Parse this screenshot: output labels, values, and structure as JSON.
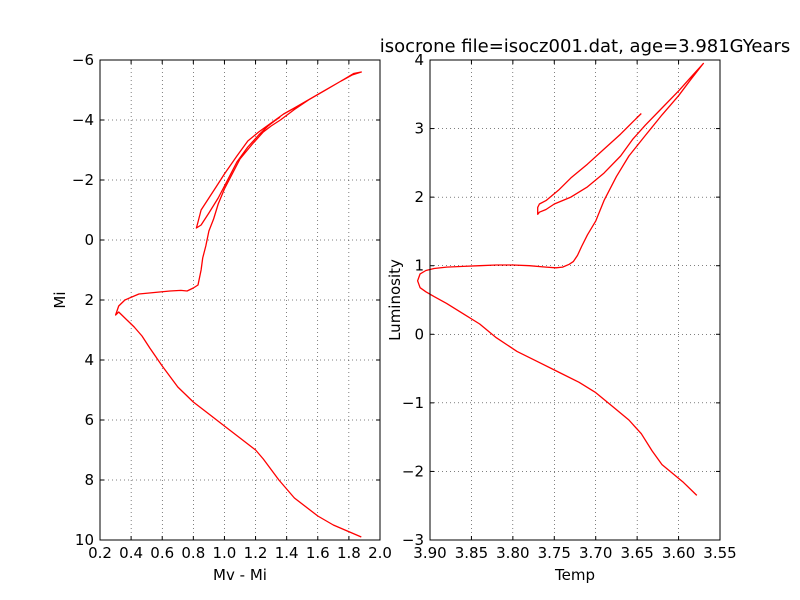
{
  "chart_data": [
    {
      "type": "line",
      "title": "",
      "xlabel": "Mv - Mi",
      "ylabel": "Mi",
      "xlim": [
        0.2,
        2.0
      ],
      "ylim": [
        10,
        -6
      ],
      "y_inverted": true,
      "grid": true,
      "xticks": [
        "0.2",
        "0.4",
        "0.6",
        "0.8",
        "1.0",
        "1.2",
        "1.4",
        "1.6",
        "1.8",
        "2.0"
      ],
      "xtick_values": [
        0.2,
        0.4,
        0.6,
        0.8,
        1.0,
        1.2,
        1.4,
        1.6,
        1.8,
        2.0
      ],
      "yticks": [
        "−6",
        "−4",
        "−2",
        "0",
        "2",
        "4",
        "6",
        "8",
        "10"
      ],
      "ytick_values": [
        -6,
        -4,
        -2,
        0,
        2,
        4,
        6,
        8,
        10
      ],
      "color": "#ff0000",
      "series": [
        {
          "x": [
            1.88,
            1.7,
            1.6,
            1.45,
            1.35,
            1.25,
            1.2,
            1.1,
            1.0,
            0.9,
            0.8,
            0.7,
            0.6,
            0.52,
            0.47,
            0.42,
            0.38,
            0.34,
            0.32,
            0.3,
            0.32,
            0.36,
            0.45,
            0.55,
            0.65,
            0.72,
            0.76,
            0.8,
            0.83,
            0.85,
            0.86,
            0.88,
            0.9,
            0.93,
            0.96,
            1.0,
            1.05,
            1.1,
            1.18,
            1.25,
            1.3,
            1.36,
            1.45,
            1.55,
            1.65,
            1.75,
            1.82,
            1.88,
            1.88,
            1.83,
            1.75,
            1.65,
            1.55,
            1.45,
            1.38,
            1.3,
            1.22,
            1.15,
            1.08,
            1.0,
            0.95,
            0.9,
            0.85,
            0.83,
            0.82,
            0.85,
            0.9,
            0.96,
            1.02,
            1.08,
            1.15,
            1.22,
            1.28,
            1.33,
            1.36
          ],
          "y": [
            9.9,
            9.5,
            9.2,
            8.6,
            8.0,
            7.3,
            7.0,
            6.6,
            6.2,
            5.8,
            5.4,
            4.9,
            4.2,
            3.6,
            3.2,
            2.9,
            2.7,
            2.5,
            2.4,
            2.5,
            2.2,
            2.0,
            1.8,
            1.75,
            1.7,
            1.68,
            1.7,
            1.6,
            1.5,
            1.0,
            0.6,
            0.2,
            -0.3,
            -0.7,
            -1.2,
            -1.7,
            -2.2,
            -2.7,
            -3.2,
            -3.6,
            -3.8,
            -4.0,
            -4.35,
            -4.7,
            -5.0,
            -5.3,
            -5.5,
            -5.6,
            -5.6,
            -5.55,
            -5.3,
            -5.0,
            -4.7,
            -4.4,
            -4.2,
            -3.9,
            -3.6,
            -3.3,
            -2.8,
            -2.2,
            -1.8,
            -1.4,
            -1.0,
            -0.6,
            -0.4,
            -0.5,
            -0.9,
            -1.4,
            -2.0,
            -2.6,
            -3.1,
            -3.5,
            -3.8,
            -4.0,
            -4.1
          ]
        }
      ]
    },
    {
      "type": "line",
      "title": "isocrone file=isocz001.dat, age=3.981GYears",
      "xlabel": "Temp",
      "ylabel": "Luminosity",
      "xlim": [
        3.9,
        3.55
      ],
      "ylim": [
        -3,
        4
      ],
      "x_inverted": true,
      "grid": true,
      "xticks": [
        "3.90",
        "3.85",
        "3.80",
        "3.75",
        "3.70",
        "3.65",
        "3.60",
        "3.55"
      ],
      "xtick_values": [
        3.9,
        3.85,
        3.8,
        3.75,
        3.7,
        3.65,
        3.6,
        3.55
      ],
      "yticks": [
        "−3",
        "−2",
        "−1",
        "0",
        "1",
        "2",
        "3",
        "4"
      ],
      "ytick_values": [
        -3,
        -2,
        -1,
        0,
        1,
        2,
        3,
        4
      ],
      "color": "#ff0000",
      "series": [
        {
          "x": [
            3.578,
            3.595,
            3.62,
            3.632,
            3.645,
            3.66,
            3.68,
            3.7,
            3.72,
            3.745,
            3.77,
            3.795,
            3.82,
            3.84,
            3.86,
            3.88,
            3.895,
            3.905,
            3.912,
            3.915,
            3.912,
            3.905,
            3.895,
            3.88,
            3.86,
            3.84,
            3.82,
            3.8,
            3.78,
            3.76,
            3.748,
            3.74,
            3.732,
            3.727,
            3.722,
            3.717,
            3.71,
            3.7,
            3.69,
            3.675,
            3.66,
            3.64,
            3.62,
            3.6,
            3.585,
            3.57,
            3.57,
            3.585,
            3.6,
            3.62,
            3.64,
            3.655,
            3.67,
            3.69,
            3.71,
            3.73,
            3.75,
            3.76,
            3.768,
            3.77,
            3.77,
            3.768,
            3.76,
            3.745,
            3.73,
            3.71,
            3.69,
            3.67,
            3.655,
            3.645
          ],
          "y": [
            -2.35,
            -2.15,
            -1.9,
            -1.7,
            -1.45,
            -1.25,
            -1.05,
            -0.85,
            -0.7,
            -0.55,
            -0.4,
            -0.25,
            -0.05,
            0.15,
            0.3,
            0.45,
            0.55,
            0.62,
            0.68,
            0.78,
            0.88,
            0.93,
            0.96,
            0.98,
            0.99,
            1.0,
            1.01,
            1.01,
            1.0,
            0.98,
            0.97,
            0.98,
            1.02,
            1.06,
            1.15,
            1.28,
            1.45,
            1.65,
            1.95,
            2.3,
            2.6,
            2.9,
            3.2,
            3.48,
            3.72,
            3.95,
            3.95,
            3.75,
            3.55,
            3.3,
            3.05,
            2.85,
            2.6,
            2.35,
            2.15,
            2.0,
            1.9,
            1.82,
            1.78,
            1.75,
            1.85,
            1.9,
            1.95,
            2.1,
            2.28,
            2.48,
            2.7,
            2.92,
            3.1,
            3.22
          ]
        }
      ]
    }
  ]
}
